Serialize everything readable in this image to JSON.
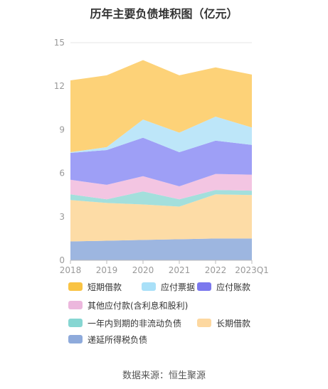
{
  "chart_data": {
    "type": "area",
    "stacked": true,
    "title": "历年主要负债堆积图（亿元）",
    "categories": [
      "2018",
      "2019",
      "2020",
      "2021",
      "2022",
      "2023Q1"
    ],
    "ylim": [
      0,
      15
    ],
    "yticks": [
      0,
      3,
      6,
      9,
      12,
      15
    ],
    "grid": true,
    "legend_position": "bottom",
    "series": [
      {
        "name": "递延所得税负债",
        "color": "#9db6e0",
        "values": [
          1.3,
          1.35,
          1.4,
          1.45,
          1.5,
          1.5
        ]
      },
      {
        "name": "长期借款",
        "color": "#fddca6",
        "values": [
          2.85,
          2.6,
          2.45,
          2.25,
          3.05,
          3.0
        ]
      },
      {
        "name": "一年内到期的非流动负债",
        "color": "#a3dfdc",
        "values": [
          0.4,
          0.25,
          0.9,
          0.5,
          0.3,
          0.3
        ]
      },
      {
        "name": "其他应付款(含利息和股利)",
        "color": "#f3c5e2",
        "values": [
          1.0,
          1.0,
          1.05,
          0.9,
          1.1,
          1.1
        ]
      },
      {
        "name": "应付账款",
        "color": "#9e9ff6",
        "values": [
          1.85,
          2.4,
          2.65,
          2.35,
          2.3,
          2.05
        ]
      },
      {
        "name": "应付票据",
        "color": "#bde6f9",
        "values": [
          0.05,
          0.2,
          1.25,
          1.35,
          1.65,
          1.2
        ]
      },
      {
        "name": "短期借款",
        "color": "#fdd278",
        "values": [
          4.95,
          4.95,
          4.1,
          3.95,
          3.4,
          3.65
        ]
      }
    ]
  },
  "legend": [
    {
      "label": "短期借款",
      "color": "#f9c343"
    },
    {
      "label": "应付票据",
      "color": "#a9e0f8"
    },
    {
      "label": "应付账款",
      "color": "#7b78ee"
    },
    {
      "label": "其他应付款(含利息和股利)",
      "color": "#ecb7dd"
    },
    {
      "label": "一年内到期的非流动负债",
      "color": "#86d6d2"
    },
    {
      "label": "长期借款",
      "color": "#fdd8a0"
    },
    {
      "label": "递延所得税负债",
      "color": "#8eaadb"
    }
  ],
  "source": "数据来源：恒生聚源"
}
